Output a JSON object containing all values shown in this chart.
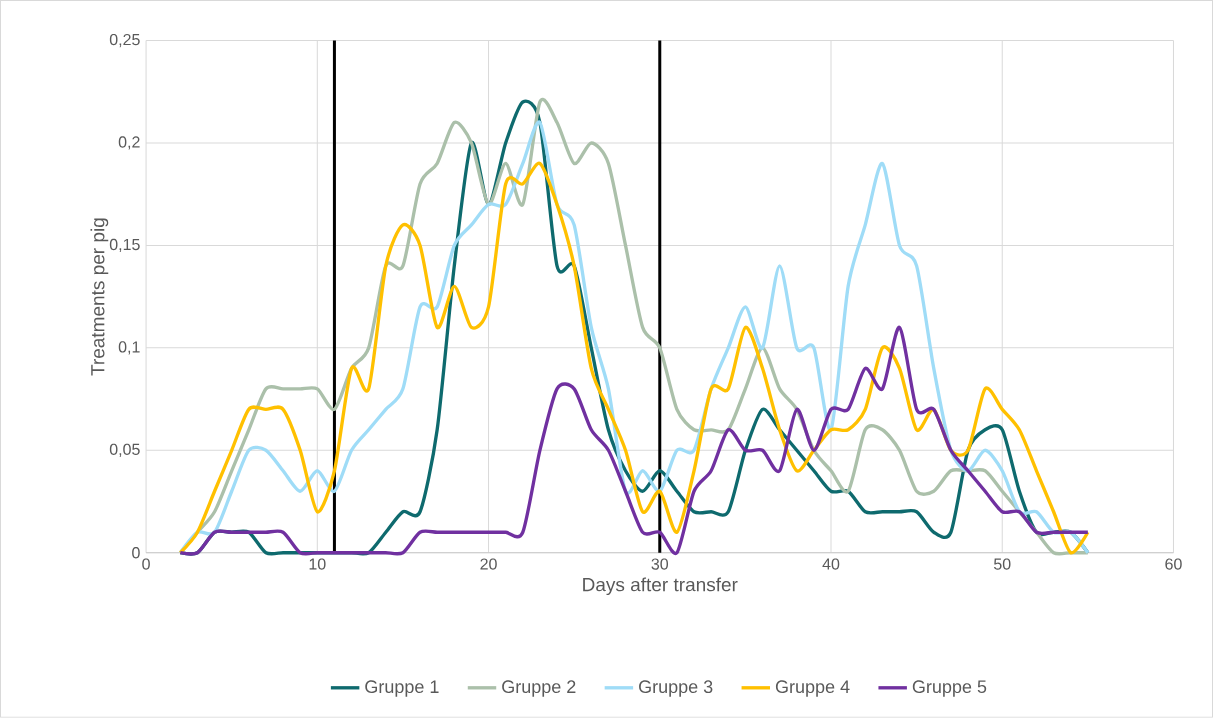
{
  "chart_data": {
    "type": "line",
    "xlabel": "Days after transfer",
    "ylabel": "Treatments per pig",
    "x": [
      2,
      3,
      4,
      5,
      6,
      7,
      8,
      9,
      10,
      11,
      12,
      13,
      14,
      15,
      16,
      17,
      18,
      19,
      20,
      21,
      22,
      23,
      24,
      25,
      26,
      27,
      28,
      29,
      30,
      31,
      32,
      33,
      34,
      35,
      36,
      37,
      38,
      39,
      40,
      41,
      42,
      43,
      44,
      45,
      46,
      47,
      48,
      49,
      50,
      51,
      52,
      53,
      54,
      55
    ],
    "series": [
      {
        "name": "Gruppe 1",
        "color": "#0e6a6e",
        "values": [
          0,
          0,
          0.01,
          0.01,
          0.01,
          0,
          0,
          0,
          0,
          0,
          0,
          0,
          0.01,
          0.02,
          0.02,
          0.06,
          0.14,
          0.2,
          0.17,
          0.2,
          0.22,
          0.21,
          0.14,
          0.14,
          0.1,
          0.06,
          0.04,
          0.03,
          0.04,
          0.03,
          0.02,
          0.02,
          0.02,
          0.05,
          0.07,
          0.06,
          0.05,
          0.04,
          0.03,
          0.03,
          0.02,
          0.02,
          0.02,
          0.02,
          0.01,
          0.01,
          0.05,
          0.06,
          0.06,
          0.03,
          0.01,
          0.01,
          0.01,
          0
        ]
      },
      {
        "name": "Gruppe 2",
        "color": "#abc0aa",
        "values": [
          0,
          0.01,
          0.02,
          0.04,
          0.06,
          0.08,
          0.08,
          0.08,
          0.08,
          0.07,
          0.09,
          0.1,
          0.14,
          0.14,
          0.18,
          0.19,
          0.21,
          0.2,
          0.17,
          0.19,
          0.17,
          0.22,
          0.21,
          0.19,
          0.2,
          0.19,
          0.15,
          0.11,
          0.1,
          0.07,
          0.06,
          0.06,
          0.06,
          0.08,
          0.1,
          0.08,
          0.07,
          0.05,
          0.04,
          0.03,
          0.06,
          0.06,
          0.05,
          0.03,
          0.03,
          0.04,
          0.04,
          0.04,
          0.03,
          0.02,
          0.01,
          0,
          0,
          0
        ]
      },
      {
        "name": "Gruppe 3",
        "color": "#9fdcf7",
        "values": [
          0,
          0.01,
          0.01,
          0.03,
          0.05,
          0.05,
          0.04,
          0.03,
          0.04,
          0.03,
          0.05,
          0.06,
          0.07,
          0.08,
          0.12,
          0.12,
          0.15,
          0.16,
          0.17,
          0.17,
          0.19,
          0.21,
          0.17,
          0.16,
          0.11,
          0.08,
          0.03,
          0.04,
          0.03,
          0.05,
          0.05,
          0.08,
          0.1,
          0.12,
          0.1,
          0.14,
          0.1,
          0.1,
          0.06,
          0.13,
          0.16,
          0.19,
          0.15,
          0.14,
          0.09,
          0.05,
          0.04,
          0.05,
          0.04,
          0.02,
          0.02,
          0.01,
          0.01,
          0
        ]
      },
      {
        "name": "Gruppe 4",
        "color": "#ffc000",
        "values": [
          0,
          0.01,
          0.03,
          0.05,
          0.07,
          0.07,
          0.07,
          0.05,
          0.02,
          0.04,
          0.09,
          0.08,
          0.14,
          0.16,
          0.15,
          0.11,
          0.13,
          0.11,
          0.12,
          0.18,
          0.18,
          0.19,
          0.17,
          0.14,
          0.09,
          0.07,
          0.05,
          0.02,
          0.03,
          0.01,
          0.04,
          0.08,
          0.08,
          0.11,
          0.09,
          0.06,
          0.04,
          0.05,
          0.06,
          0.06,
          0.07,
          0.1,
          0.09,
          0.06,
          0.07,
          0.05,
          0.05,
          0.08,
          0.07,
          0.06,
          0.04,
          0.02,
          0,
          0.01
        ]
      },
      {
        "name": "Gruppe 5",
        "color": "#7030a0",
        "values": [
          0,
          0,
          0.01,
          0.01,
          0.01,
          0.01,
          0.01,
          0,
          0,
          0,
          0,
          0,
          0,
          0,
          0.01,
          0.01,
          0.01,
          0.01,
          0.01,
          0.01,
          0.01,
          0.05,
          0.08,
          0.08,
          0.06,
          0.05,
          0.03,
          0.01,
          0.01,
          0,
          0.03,
          0.04,
          0.06,
          0.05,
          0.05,
          0.04,
          0.07,
          0.05,
          0.07,
          0.07,
          0.09,
          0.08,
          0.11,
          0.07,
          0.07,
          0.05,
          0.04,
          0.03,
          0.02,
          0.02,
          0.01,
          0.01,
          0.01,
          0.01
        ]
      }
    ],
    "xlim": [
      0,
      60
    ],
    "xticks": [
      0,
      10,
      20,
      30,
      40,
      50,
      60
    ],
    "ylim": [
      0,
      0.25
    ],
    "yticks": [
      {
        "value": 0,
        "label": "0"
      },
      {
        "value": 0.05,
        "label": "0,05"
      },
      {
        "value": 0.1,
        "label": "0,1"
      },
      {
        "value": 0.15,
        "label": "0,15"
      },
      {
        "value": 0.2,
        "label": "0,2"
      },
      {
        "value": 0.25,
        "label": "0,25"
      }
    ],
    "ref_lines": [
      {
        "axis": "x",
        "value": 11,
        "color": "#000000"
      },
      {
        "axis": "x",
        "value": 30,
        "color": "#000000"
      }
    ],
    "grid": true,
    "legend": "bottom",
    "line_style": "solid"
  }
}
